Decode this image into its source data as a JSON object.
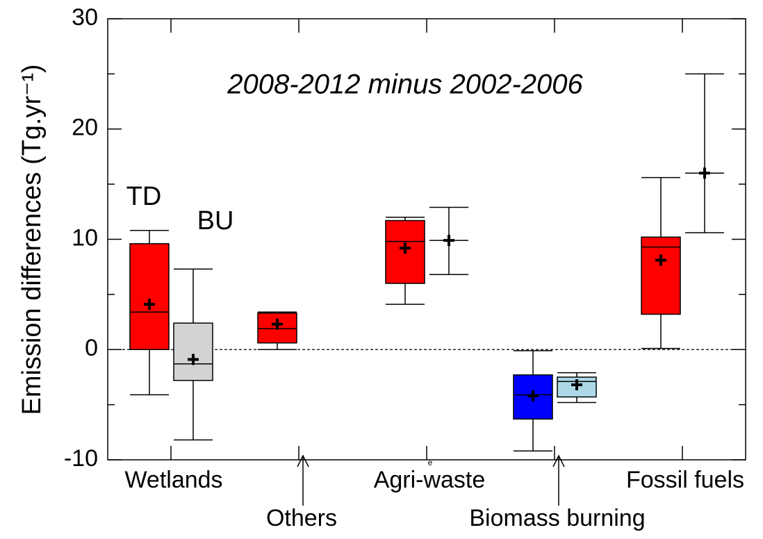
{
  "chart_data": {
    "type": "box",
    "title": "2008-2012 minus 2002-2006",
    "ylabel": "Emission differences (Tg.yr⁻¹)",
    "categories": [
      "Wetlands",
      "Others",
      "Agri-waste",
      "Biomass burning",
      "Fossil fuels"
    ],
    "annotation": "e",
    "ylim": [
      -10,
      30
    ],
    "yticks": [
      -10,
      0,
      10,
      20,
      30
    ],
    "series": [
      {
        "name": "TD",
        "boxes": [
          {
            "min": -4.1,
            "q1": 0,
            "median": 3.4,
            "q3": 9.6,
            "max": 10.8,
            "mean": 4.1,
            "color": "#ff0000"
          },
          {
            "min": 0,
            "q1": 0.6,
            "median": 1.9,
            "q3": 3.3,
            "max": 3.4,
            "mean": 2.3,
            "color": "#ff0000"
          },
          {
            "min": 4.1,
            "q1": 6.0,
            "median": 9.8,
            "q3": 11.7,
            "max": 12.0,
            "mean": 9.2,
            "color": "#ff0000"
          },
          {
            "min": -9.2,
            "q1": -6.3,
            "median": -4.1,
            "q3": -2.3,
            "max": -0.1,
            "mean": -4.2,
            "color": "#0000ff"
          },
          {
            "min": 0.1,
            "q1": 3.2,
            "median": 9.3,
            "q3": 10.2,
            "max": 15.6,
            "mean": 8.1,
            "color": "#ff0000"
          }
        ]
      },
      {
        "name": "BU",
        "boxes": [
          {
            "min": -8.2,
            "q1": -2.8,
            "median": -1.3,
            "q3": 2.4,
            "max": 7.3,
            "mean": -0.9,
            "color": "#d3d3d3"
          },
          null,
          {
            "min": 6.8,
            "q1": 9.9,
            "median": 9.9,
            "q3": 9.9,
            "max": 12.9,
            "mean": 9.9,
            "color": "#ffffff"
          },
          {
            "min": -4.8,
            "q1": -4.3,
            "median": -2.9,
            "q3": -2.5,
            "max": -2.1,
            "mean": -3.2,
            "color": "#add8e6"
          },
          {
            "min": 10.6,
            "q1": 16.0,
            "median": 16.0,
            "q3": 16.0,
            "max": 25.0,
            "mean": 16.0,
            "color": "#ffffff"
          }
        ]
      }
    ]
  }
}
